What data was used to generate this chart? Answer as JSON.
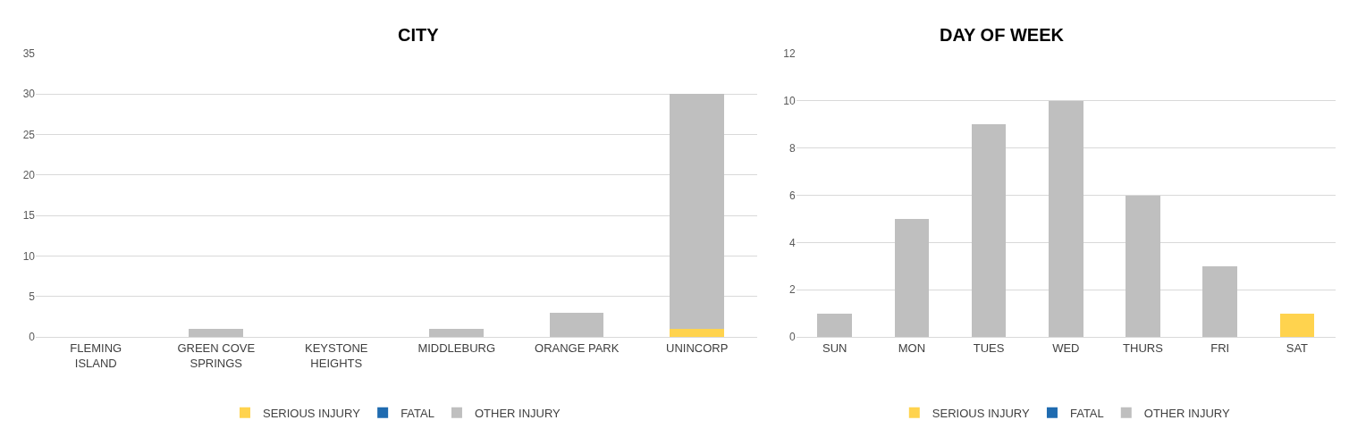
{
  "chart_data": [
    {
      "type": "bar",
      "title": "CITY",
      "categories": [
        "FLEMING ISLAND",
        "GREEN COVE SPRINGS",
        "KEYSTONE HEIGHTS",
        "MIDDLEBURG",
        "ORANGE PARK",
        "UNINCORP"
      ],
      "stacked": true,
      "ylim": [
        0,
        35
      ],
      "yticks": [
        0,
        5,
        10,
        15,
        20,
        25,
        30,
        35
      ],
      "grid": "y",
      "legend": "bottom",
      "series": [
        {
          "name": "SERIOUS INJURY",
          "color": "#ffd34e",
          "values": [
            0,
            0,
            0,
            0,
            0,
            1
          ]
        },
        {
          "name": "FATAL",
          "color": "#1f6bb0",
          "values": [
            0,
            0,
            0,
            0,
            0,
            0
          ]
        },
        {
          "name": "OTHER INJURY",
          "color": "#bfbfbf",
          "values": [
            0,
            1,
            0,
            1,
            3,
            29
          ]
        }
      ]
    },
    {
      "type": "bar",
      "title": "DAY OF WEEK",
      "categories": [
        "SUN",
        "MON",
        "TUES",
        "WED",
        "THURS",
        "FRI",
        "SAT"
      ],
      "stacked": true,
      "ylim": [
        0,
        12
      ],
      "yticks": [
        0,
        2,
        4,
        6,
        8,
        10,
        12
      ],
      "grid": "y",
      "legend": "bottom",
      "series": [
        {
          "name": "SERIOUS INJURY",
          "color": "#ffd34e",
          "values": [
            0,
            0,
            0,
            0,
            0,
            0,
            1
          ]
        },
        {
          "name": "FATAL",
          "color": "#1f6bb0",
          "values": [
            0,
            0,
            0,
            0,
            0,
            0,
            0
          ]
        },
        {
          "name": "OTHER INJURY",
          "color": "#bfbfbf",
          "values": [
            1,
            5,
            9,
            10,
            6,
            3,
            0
          ]
        }
      ]
    }
  ]
}
